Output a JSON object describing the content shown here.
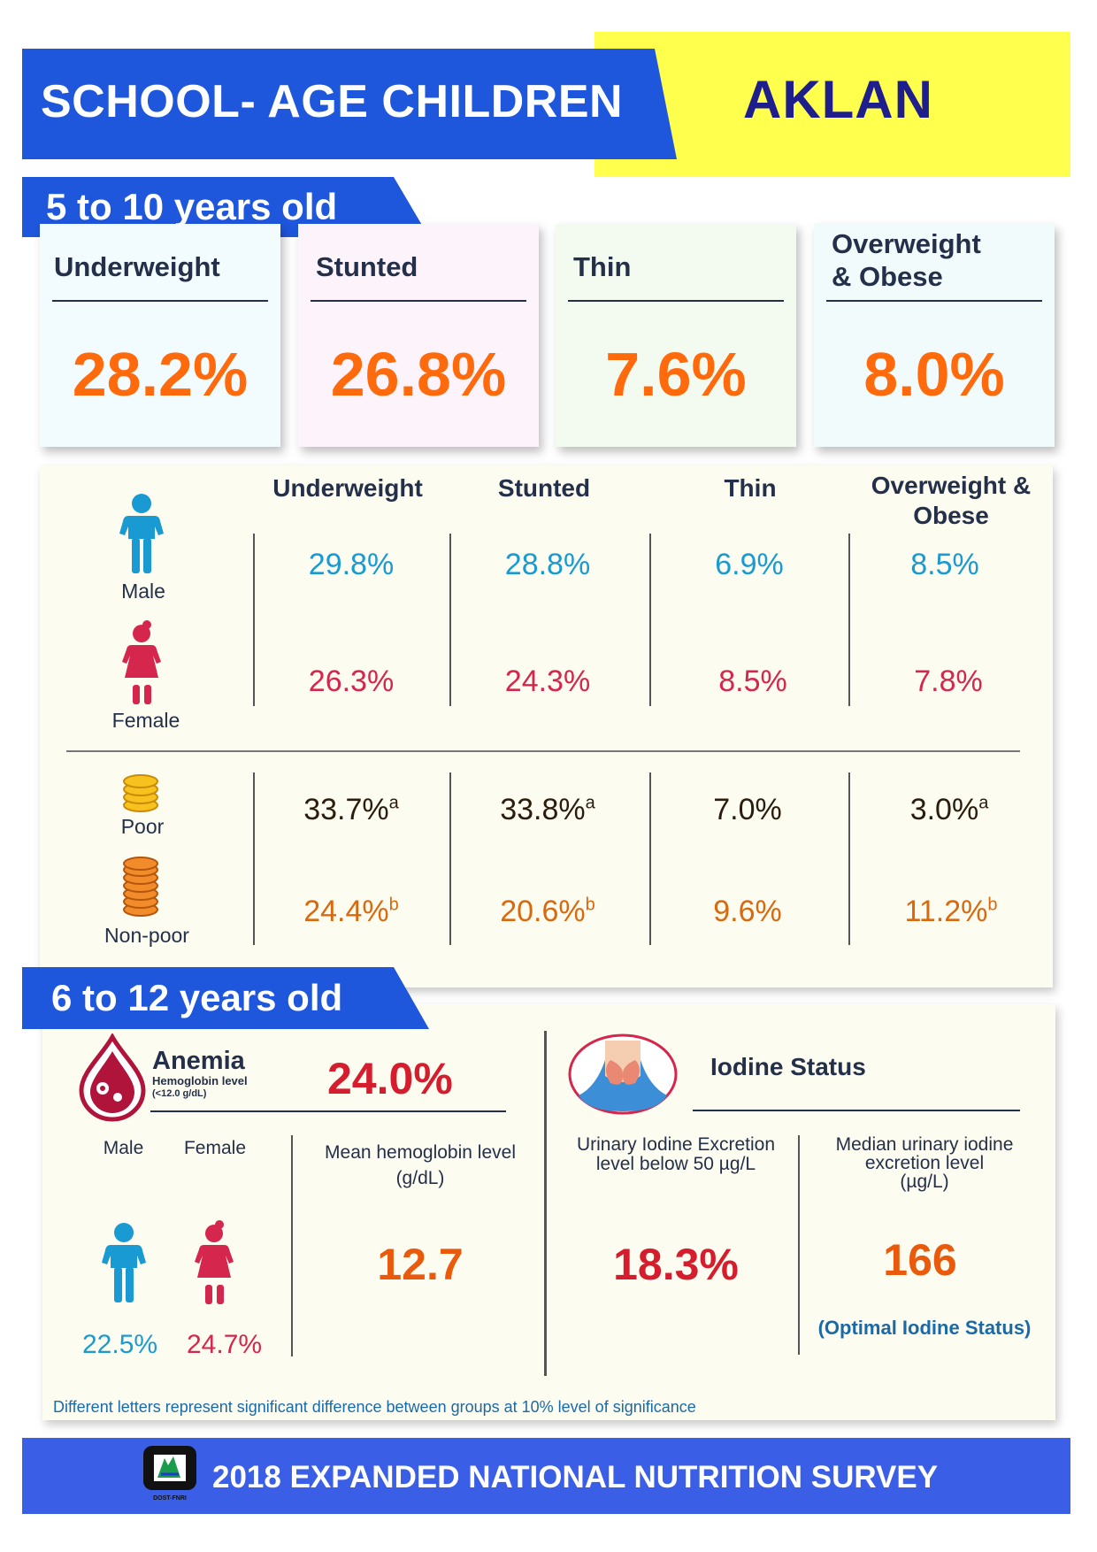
{
  "header": {
    "title": "SCHOOL- AGE CHILDREN",
    "region": "AKLAN"
  },
  "section1": {
    "label": "5 to 10 years old",
    "cards": [
      {
        "label_line1": "Underweight",
        "label_line2": "",
        "value": "28.2%",
        "bg": "#f2fbfd"
      },
      {
        "label_line1": "Stunted",
        "label_line2": "",
        "value": "26.8%",
        "bg": "#fcf3fb"
      },
      {
        "label_line1": "Thin",
        "label_line2": "",
        "value": "7.6%",
        "bg": "#f3fbf0"
      },
      {
        "label_line1": "Overweight",
        "label_line2": "& Obese",
        "value": "8.0%",
        "bg": "#f2fbfb"
      }
    ],
    "table": {
      "headers": [
        "Underweight",
        "Stunted",
        "Thin",
        "Overweight &",
        "Obese"
      ],
      "rows": {
        "male": {
          "label": "Male",
          "values": [
            "29.8%",
            "28.8%",
            "6.9%",
            "8.5%"
          ]
        },
        "female": {
          "label": "Female",
          "values": [
            "26.3%",
            "24.3%",
            "8.5%",
            "7.8%"
          ]
        },
        "poor": {
          "label": "Poor",
          "values": [
            "33.7%",
            "33.8%",
            "7.0%",
            "3.0%"
          ],
          "sup": [
            "a",
            "a",
            "",
            "a"
          ]
        },
        "nonpoor": {
          "label": "Non-poor",
          "values": [
            "24.4%",
            "20.6%",
            "9.6%",
            "11.2%"
          ],
          "sup": [
            "b",
            "b",
            "",
            "b"
          ]
        }
      }
    }
  },
  "section2": {
    "label": "6 to 12 years old",
    "anemia": {
      "title": "Anemia",
      "subtitle": "Hemoglobin level",
      "threshold": "(<12.0 g/dL)",
      "value": "24.0%",
      "male_label": "Male",
      "female_label": "Female",
      "male_value": "22.5%",
      "female_value": "24.7%",
      "mean_label_line1": "Mean hemoglobin level",
      "mean_label_line2": "(g/dL)",
      "mean_value": "12.7"
    },
    "iodine": {
      "title": "Iodine Status",
      "uie_label_line1": "Urinary Iodine Excretion",
      "uie_label_line2": "level below 50 µg/L",
      "uie_value": "18.3%",
      "median_label_line1": "Median urinary iodine",
      "median_label_line2": "excretion level",
      "median_label_line3": "(µg/L)",
      "median_value": "166",
      "status": "(Optimal Iodine Status)"
    },
    "footnote": "Different letters represent significant difference between groups at 10% level of significance"
  },
  "footer": {
    "logo_text": "DOST-FNRI",
    "title": "2018 EXPANDED NATIONAL NUTRITION SURVEY"
  },
  "colors": {
    "blue_banner": "#1e56dc",
    "yellow_banner": "#ffff4d",
    "orange": "#ff6a0d",
    "male_blue": "#1a9ad2",
    "female_pink": "#d5264d"
  }
}
